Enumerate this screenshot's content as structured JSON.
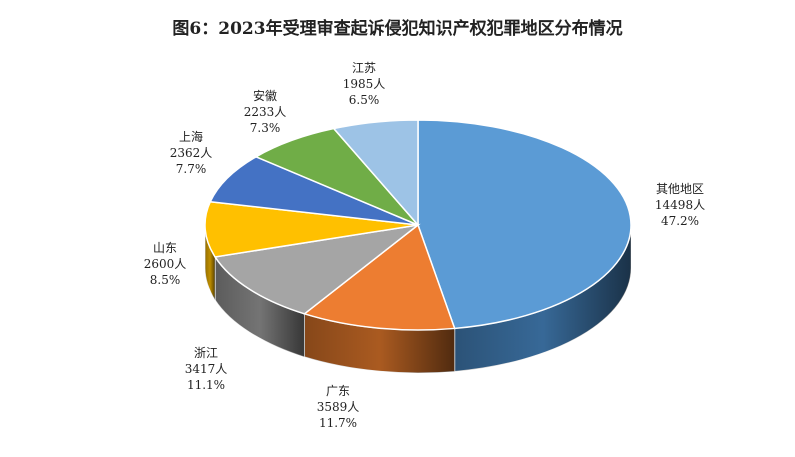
{
  "title": "图6：2023年受理审查起诉侵犯知识产权犯罪地区分布情况",
  "chart_data": {
    "type": "pie",
    "style": "3d",
    "title": "图6：2023年受理审查起诉侵犯知识产权犯罪地区分布情况",
    "unit": "人",
    "slices": [
      {
        "name": "其他地区",
        "value": 14498,
        "percent": "47.2%",
        "color": "#5b9bd5",
        "side": "#3a6e9f"
      },
      {
        "name": "广东",
        "value": 3589,
        "percent": "11.7%",
        "color": "#ed7d31",
        "side": "#b35f22"
      },
      {
        "name": "浙江",
        "value": 3417,
        "percent": "11.1%",
        "color": "#a5a5a5",
        "side": "#7a7a7a"
      },
      {
        "name": "山东",
        "value": 2600,
        "percent": "8.5%",
        "color": "#ffc000",
        "side": "#c79400"
      },
      {
        "name": "上海",
        "value": 2362,
        "percent": "7.7%",
        "color": "#4472c4",
        "side": "#2f5597"
      },
      {
        "name": "安徽",
        "value": 2233,
        "percent": "7.3%",
        "color": "#70ad47",
        "side": "#4f7d31"
      },
      {
        "name": "江苏",
        "value": 1985,
        "percent": "6.5%",
        "color": "#9dc3e6",
        "side": "#6f96bb"
      }
    ]
  }
}
